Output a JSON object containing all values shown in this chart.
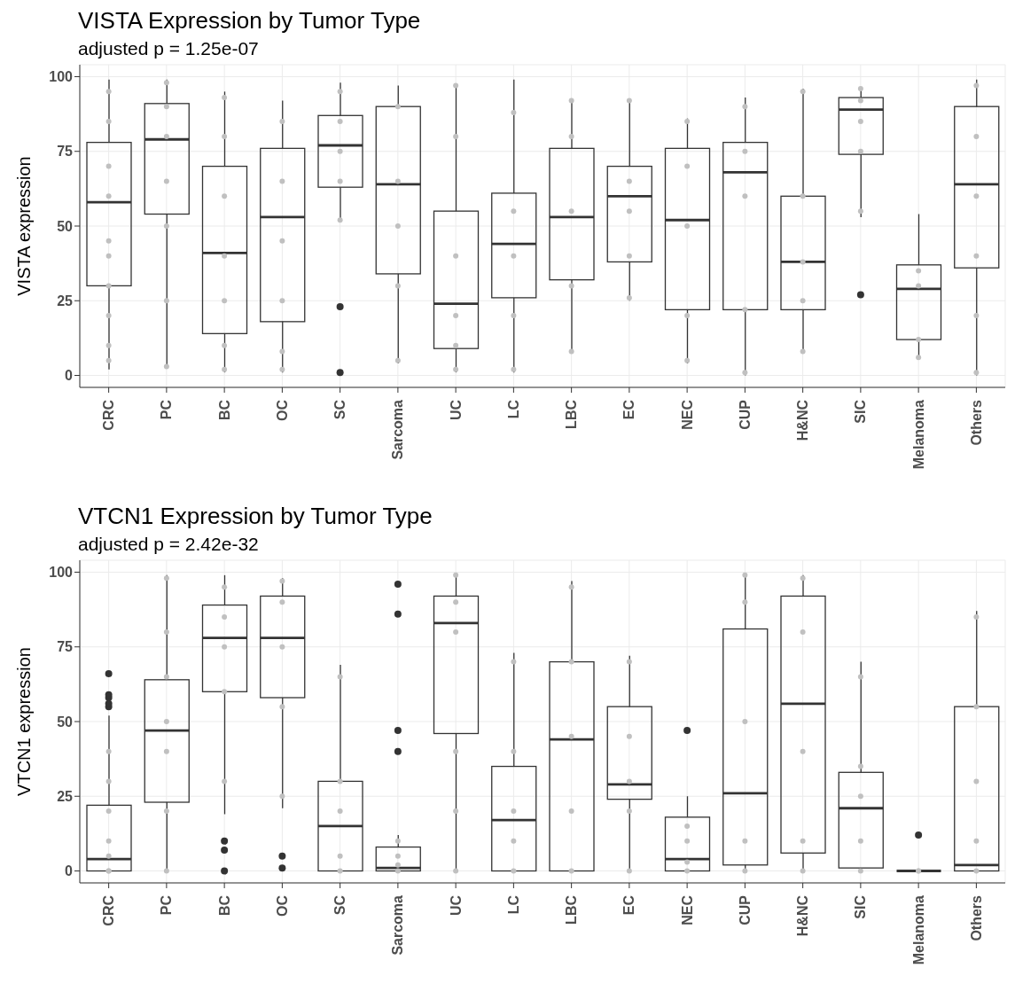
{
  "chart_data": [
    {
      "type": "box",
      "title": "VISTA Expression by Tumor Type",
      "subtitle": "adjusted p =  1.25e-07",
      "ylabel": "VISTA expression",
      "categories": [
        "CRC",
        "PC",
        "BC",
        "OC",
        "SC",
        "Sarcoma",
        "UC",
        "LC",
        "LBC",
        "EC",
        "NEC",
        "CUP",
        "H&NC",
        "SIC",
        "Melanoma",
        "Others"
      ],
      "ylim": [
        -4,
        104
      ],
      "yticks": [
        0,
        25,
        50,
        75,
        100
      ],
      "grid": true,
      "series": [
        {
          "type": "scatter",
          "color": "#c0c0c0",
          "x": [
            "CRC",
            "CRC",
            "CRC",
            "CRC",
            "CRC",
            "CRC",
            "CRC",
            "CRC",
            "CRC",
            "CRC",
            "PC",
            "PC",
            "PC",
            "PC",
            "PC",
            "PC",
            "PC",
            "BC",
            "BC",
            "BC",
            "BC",
            "BC",
            "BC",
            "BC",
            "OC",
            "OC",
            "OC",
            "OC",
            "OC",
            "OC",
            "SC",
            "SC",
            "SC",
            "SC",
            "SC",
            "Sarcoma",
            "Sarcoma",
            "Sarcoma",
            "Sarcoma",
            "Sarcoma",
            "UC",
            "UC",
            "UC",
            "UC",
            "UC",
            "UC",
            "LC",
            "LC",
            "LC",
            "LC",
            "LC",
            "LBC",
            "LBC",
            "LBC",
            "LBC",
            "LBC",
            "EC",
            "EC",
            "EC",
            "EC",
            "EC",
            "NEC",
            "NEC",
            "NEC",
            "NEC",
            "NEC",
            "CUP",
            "CUP",
            "CUP",
            "CUP",
            "CUP",
            "H&NC",
            "H&NC",
            "H&NC",
            "H&NC",
            "H&NC",
            "SIC",
            "SIC",
            "SIC",
            "SIC",
            "SIC",
            "Melanoma",
            "Melanoma",
            "Melanoma",
            "Melanoma",
            "Others",
            "Others",
            "Others",
            "Others",
            "Others",
            "Others"
          ],
          "values": [
            10,
            20,
            30,
            45,
            60,
            70,
            85,
            95,
            5,
            40,
            3,
            25,
            50,
            65,
            80,
            90,
            98,
            2,
            10,
            25,
            40,
            60,
            80,
            93,
            2,
            8,
            25,
            45,
            65,
            85,
            52,
            65,
            75,
            85,
            95,
            5,
            30,
            50,
            65,
            90,
            2,
            10,
            20,
            40,
            80,
            97,
            2,
            20,
            40,
            55,
            88,
            8,
            30,
            55,
            80,
            92,
            26,
            40,
            55,
            65,
            92,
            5,
            20,
            50,
            70,
            85,
            1,
            22,
            60,
            75,
            90,
            8,
            25,
            38,
            60,
            95,
            55,
            75,
            85,
            92,
            96,
            6,
            12,
            30,
            35,
            1,
            20,
            40,
            60,
            80,
            97
          ]
        },
        {
          "color": "#333333",
          "boxes": [
            {
              "low": 2,
              "q1": 30,
              "median": 58,
              "q3": 78,
              "high": 99
            },
            {
              "low": 3,
              "q1": 54,
              "median": 79,
              "q3": 91,
              "high": 99
            },
            {
              "low": 1,
              "q1": 14,
              "median": 41,
              "q3": 70,
              "high": 95
            },
            {
              "low": 1,
              "q1": 18,
              "median": 53,
              "q3": 76,
              "high": 92
            },
            {
              "low": 52,
              "q1": 63,
              "median": 77,
              "q3": 87,
              "high": 98,
              "outliers": [
                23,
                1
              ]
            },
            {
              "low": 4,
              "q1": 34,
              "median": 64,
              "q3": 90,
              "high": 97
            },
            {
              "low": 1,
              "q1": 9,
              "median": 24,
              "q3": 55,
              "high": 97
            },
            {
              "low": 1,
              "q1": 26,
              "median": 44,
              "q3": 61,
              "high": 99
            },
            {
              "low": 8,
              "q1": 32,
              "median": 53,
              "q3": 76,
              "high": 92
            },
            {
              "low": 25,
              "q1": 38,
              "median": 60,
              "q3": 70,
              "high": 92
            },
            {
              "low": 4,
              "q1": 22,
              "median": 52,
              "q3": 76,
              "high": 86
            },
            {
              "low": 0,
              "q1": 22,
              "median": 68,
              "q3": 78,
              "high": 93
            },
            {
              "low": 8,
              "q1": 22,
              "median": 38,
              "q3": 60,
              "high": 96
            },
            {
              "low": 53,
              "q1": 74,
              "median": 89,
              "q3": 93,
              "high": 96,
              "outliers": [
                27
              ]
            },
            {
              "low": 6,
              "q1": 12,
              "median": 29,
              "q3": 37,
              "high": 54
            },
            {
              "low": 0,
              "q1": 36,
              "median": 64,
              "q3": 90,
              "high": 99
            }
          ]
        }
      ]
    },
    {
      "type": "box",
      "title": "VTCN1 Expression by Tumor Type",
      "subtitle": "adjusted p =  2.42e-32",
      "ylabel": "VTCN1 expression",
      "categories": [
        "CRC",
        "PC",
        "BC",
        "OC",
        "SC",
        "Sarcoma",
        "UC",
        "LC",
        "LBC",
        "EC",
        "NEC",
        "CUP",
        "H&NC",
        "SIC",
        "Melanoma",
        "Others"
      ],
      "ylim": [
        -4,
        104
      ],
      "yticks": [
        0,
        25,
        50,
        75,
        100
      ],
      "grid": true,
      "series": [
        {
          "type": "scatter",
          "color": "#c0c0c0",
          "x": [
            "CRC",
            "CRC",
            "CRC",
            "CRC",
            "CRC",
            "CRC",
            "CRC",
            "PC",
            "PC",
            "PC",
            "PC",
            "PC",
            "PC",
            "PC",
            "BC",
            "BC",
            "BC",
            "BC",
            "BC",
            "OC",
            "OC",
            "OC",
            "OC",
            "OC",
            "SC",
            "SC",
            "SC",
            "SC",
            "SC",
            "Sarcoma",
            "Sarcoma",
            "Sarcoma",
            "Sarcoma",
            "UC",
            "UC",
            "UC",
            "UC",
            "UC",
            "UC",
            "LC",
            "LC",
            "LC",
            "LC",
            "LC",
            "LBC",
            "LBC",
            "LBC",
            "LBC",
            "LBC",
            "EC",
            "EC",
            "EC",
            "EC",
            "EC",
            "NEC",
            "NEC",
            "NEC",
            "NEC",
            "CUP",
            "CUP",
            "CUP",
            "CUP",
            "CUP",
            "H&NC",
            "H&NC",
            "H&NC",
            "H&NC",
            "H&NC",
            "SIC",
            "SIC",
            "SIC",
            "SIC",
            "SIC",
            "Melanoma",
            "Melanoma",
            "Others",
            "Others",
            "Others",
            "Others",
            "Others"
          ],
          "values": [
            0,
            0,
            5,
            10,
            20,
            30,
            40,
            0,
            20,
            40,
            50,
            65,
            80,
            98,
            30,
            60,
            75,
            85,
            95,
            25,
            55,
            75,
            90,
            97,
            0,
            5,
            20,
            30,
            65,
            0,
            2,
            5,
            10,
            0,
            20,
            40,
            80,
            90,
            99,
            0,
            10,
            20,
            40,
            70,
            0,
            20,
            45,
            70,
            95,
            0,
            20,
            30,
            45,
            70,
            0,
            3,
            10,
            15,
            0,
            10,
            50,
            90,
            99,
            0,
            10,
            40,
            80,
            98,
            0,
            10,
            25,
            35,
            65,
            0,
            0,
            0,
            10,
            30,
            55,
            85
          ]
        },
        {
          "color": "#333333",
          "boxes": [
            {
              "low": 0,
              "q1": 0,
              "median": 4,
              "q3": 22,
              "high": 52,
              "outliers": [
                55,
                56,
                58,
                59,
                66
              ]
            },
            {
              "low": 0,
              "q1": 23,
              "median": 47,
              "q3": 64,
              "high": 99
            },
            {
              "low": 19,
              "q1": 60,
              "median": 78,
              "q3": 89,
              "high": 99,
              "outliers": [
                10,
                7,
                0
              ]
            },
            {
              "low": 21,
              "q1": 58,
              "median": 78,
              "q3": 92,
              "high": 98,
              "outliers": [
                5,
                1
              ]
            },
            {
              "low": 0,
              "q1": 0,
              "median": 15,
              "q3": 30,
              "high": 69
            },
            {
              "low": 0,
              "q1": 0,
              "median": 1,
              "q3": 8,
              "high": 12,
              "outliers": [
                40,
                47,
                86,
                96
              ]
            },
            {
              "low": 0,
              "q1": 46,
              "median": 83,
              "q3": 92,
              "high": 99
            },
            {
              "low": 0,
              "q1": 0,
              "median": 17,
              "q3": 35,
              "high": 73
            },
            {
              "low": 0,
              "q1": 0,
              "median": 44,
              "q3": 70,
              "high": 97
            },
            {
              "low": 0,
              "q1": 24,
              "median": 29,
              "q3": 55,
              "high": 72
            },
            {
              "low": 0,
              "q1": 0,
              "median": 4,
              "q3": 18,
              "high": 25,
              "outliers": [
                47
              ]
            },
            {
              "low": 0,
              "q1": 2,
              "median": 26,
              "q3": 81,
              "high": 99
            },
            {
              "low": 0,
              "q1": 6,
              "median": 56,
              "q3": 92,
              "high": 99
            },
            {
              "low": 0,
              "q1": 1,
              "median": 21,
              "q3": 33,
              "high": 70
            },
            {
              "low": 0,
              "q1": 0,
              "median": 0,
              "q3": 0,
              "high": 0,
              "outliers": [
                12
              ]
            },
            {
              "low": 0,
              "q1": 0,
              "median": 2,
              "q3": 55,
              "high": 87
            }
          ]
        }
      ]
    }
  ]
}
